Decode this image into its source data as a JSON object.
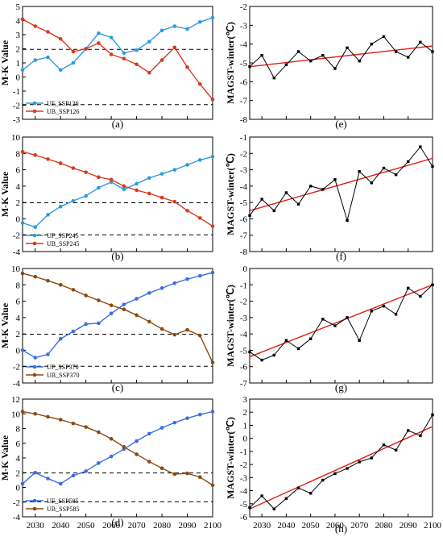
{
  "figure": {
    "panels": [
      {
        "label": "(a)",
        "ylabel": "M-K Value",
        "kind": "mk",
        "x": "left",
        "ylim": [
          -3,
          5
        ],
        "yticks": [
          -3,
          -2,
          -1,
          0,
          1,
          2,
          3,
          4,
          5
        ],
        "legend": [
          "UF_SSP126",
          "UB_SSP126"
        ],
        "uf_color": "#2e9be0",
        "ub_color": "#d83a1f"
      },
      {
        "label": "(b)",
        "ylabel": "M-K Value",
        "kind": "mk",
        "x": "left",
        "ylim": [
          -4,
          10
        ],
        "yticks": [
          -4,
          -2,
          0,
          2,
          4,
          6,
          8,
          10
        ],
        "legend": [
          "UF_SSP245",
          "UB_SSP245"
        ],
        "uf_color": "#2e9be0",
        "ub_color": "#d83a1f"
      },
      {
        "label": "(c)",
        "ylabel": "M-K Value",
        "kind": "mk",
        "x": "left",
        "ylim": [
          -4,
          10
        ],
        "yticks": [
          -4,
          -2,
          0,
          2,
          4,
          6,
          8,
          10
        ],
        "legend": [
          "UF_SSP370",
          "UB_SSP370"
        ],
        "uf_color": "#3a6fe0",
        "ub_color": "#8a4a12"
      },
      {
        "label": "(d)",
        "ylabel": "M-K Value",
        "kind": "mk",
        "x": "left",
        "ylim": [
          -4,
          12
        ],
        "yticks": [
          -4,
          -2,
          0,
          2,
          4,
          6,
          8,
          10,
          12
        ],
        "legend": [
          "UF_SSP585",
          "UB_SSP585"
        ],
        "uf_color": "#3a6fe0",
        "ub_color": "#8a4a12"
      },
      {
        "label": "(e)",
        "ylabel": "MAGST-winter(℃)",
        "kind": "ts",
        "x": "right",
        "ylim": [
          -8,
          -2
        ],
        "yticks": [
          -8,
          -7,
          -6,
          -5,
          -4,
          -3,
          -2
        ]
      },
      {
        "label": "(f)",
        "ylabel": "MAGST-winter(℃)",
        "kind": "ts",
        "x": "right",
        "ylim": [
          -8,
          -1
        ],
        "yticks": [
          -8,
          -7,
          -6,
          -5,
          -4,
          -3,
          -2,
          -1
        ]
      },
      {
        "label": "(g)",
        "ylabel": "MAGST-winter(℃)",
        "kind": "ts",
        "x": "right",
        "ylim": [
          -7,
          0
        ],
        "yticks": [
          -7,
          -6,
          -5,
          -4,
          -3,
          -2,
          -1,
          0
        ]
      },
      {
        "label": "(h)",
        "ylabel": "MAGST-winter(℃)",
        "kind": "ts",
        "x": "right",
        "ylim": [
          -6,
          3
        ],
        "yticks": [
          -6,
          -5,
          -4,
          -3,
          -2,
          -1,
          0,
          1,
          2,
          3
        ]
      }
    ],
    "xticks": [
      2030,
      2040,
      2050,
      2060,
      2070,
      2080,
      2090,
      2100
    ],
    "xlim": [
      2025,
      2100
    ]
  },
  "chart_data": [
    {
      "type": "line",
      "panel": "(a)",
      "x": [
        2025,
        2030,
        2035,
        2040,
        2045,
        2050,
        2055,
        2060,
        2065,
        2070,
        2075,
        2080,
        2085,
        2090,
        2095,
        2100
      ],
      "series": [
        {
          "name": "UF_SSP126",
          "values": [
            0.5,
            1.2,
            1.4,
            0.5,
            1.0,
            2.0,
            3.1,
            2.8,
            1.7,
            1.9,
            2.5,
            3.3,
            3.6,
            3.4,
            3.9,
            4.2
          ]
        },
        {
          "name": "UB_SSP126",
          "values": [
            4.1,
            3.6,
            3.2,
            2.7,
            1.8,
            2.0,
            2.4,
            1.6,
            1.3,
            0.9,
            0.3,
            1.2,
            2.1,
            0.7,
            -0.5,
            -1.6
          ]
        }
      ],
      "ref_lines": [
        1.96,
        -1.96
      ]
    },
    {
      "type": "line",
      "panel": "(b)",
      "x": [
        2025,
        2030,
        2035,
        2040,
        2045,
        2050,
        2055,
        2060,
        2065,
        2070,
        2075,
        2080,
        2085,
        2090,
        2095,
        2100
      ],
      "series": [
        {
          "name": "UF_SSP245",
          "values": [
            -0.5,
            -1.0,
            0.5,
            1.5,
            2.2,
            2.8,
            3.8,
            4.5,
            3.6,
            4.3,
            5.0,
            5.5,
            6.0,
            6.6,
            7.2,
            7.6
          ]
        },
        {
          "name": "UB_SSP245",
          "values": [
            8.2,
            7.8,
            7.3,
            6.8,
            6.2,
            5.7,
            5.1,
            4.8,
            4.0,
            3.5,
            3.1,
            2.6,
            2.1,
            1.0,
            0.1,
            -0.9
          ]
        }
      ],
      "ref_lines": [
        1.96,
        -1.96
      ]
    },
    {
      "type": "line",
      "panel": "(c)",
      "x": [
        2025,
        2030,
        2035,
        2040,
        2045,
        2050,
        2055,
        2060,
        2065,
        2070,
        2075,
        2080,
        2085,
        2090,
        2095,
        2100
      ],
      "series": [
        {
          "name": "UF_SSP370",
          "values": [
            0.0,
            -0.9,
            -0.5,
            1.4,
            2.3,
            3.2,
            3.3,
            4.5,
            5.6,
            6.3,
            7.0,
            7.6,
            8.2,
            8.7,
            9.1,
            9.5
          ]
        },
        {
          "name": "UB_SSP370",
          "values": [
            9.4,
            9.0,
            8.5,
            8.0,
            7.4,
            6.7,
            6.1,
            5.5,
            5.0,
            4.3,
            3.5,
            2.6,
            1.9,
            2.5,
            1.8,
            -1.5
          ]
        }
      ],
      "ref_lines": [
        1.96,
        -1.96
      ]
    },
    {
      "type": "line",
      "panel": "(d)",
      "x": [
        2025,
        2030,
        2035,
        2040,
        2045,
        2050,
        2055,
        2060,
        2065,
        2070,
        2075,
        2080,
        2085,
        2090,
        2095,
        2100
      ],
      "series": [
        {
          "name": "UF_SSP585",
          "values": [
            0.5,
            2.0,
            1.2,
            0.5,
            1.6,
            2.2,
            3.3,
            4.2,
            5.2,
            6.3,
            7.3,
            8.1,
            8.8,
            9.4,
            9.9,
            10.3
          ]
        },
        {
          "name": "UB_SSP585",
          "values": [
            10.3,
            10.0,
            9.6,
            9.2,
            8.7,
            8.2,
            7.5,
            6.6,
            5.5,
            4.5,
            3.5,
            2.6,
            1.8,
            1.9,
            1.4,
            0.3
          ]
        }
      ],
      "ref_lines": [
        1.96,
        -1.96
      ]
    },
    {
      "type": "line",
      "panel": "(e)",
      "x": [
        2025,
        2030,
        2035,
        2040,
        2045,
        2050,
        2055,
        2060,
        2065,
        2070,
        2075,
        2080,
        2085,
        2090,
        2095,
        2100
      ],
      "series": [
        {
          "name": "",
          "values": [
            -5.2,
            -4.6,
            -5.8,
            -5.1,
            -4.4,
            -4.9,
            -4.6,
            -5.3,
            -4.2,
            -4.9,
            -4.0,
            -3.6,
            -4.4,
            -4.7,
            -3.9,
            -4.4
          ]
        }
      ],
      "trend": [
        -5.2,
        -4.1
      ]
    },
    {
      "type": "line",
      "panel": "(f)",
      "x": [
        2025,
        2030,
        2035,
        2040,
        2045,
        2050,
        2055,
        2060,
        2065,
        2070,
        2075,
        2080,
        2085,
        2090,
        2095,
        2100
      ],
      "series": [
        {
          "name": "",
          "values": [
            -5.8,
            -4.8,
            -5.5,
            -4.4,
            -5.1,
            -4.0,
            -4.2,
            -3.6,
            -6.1,
            -3.1,
            -3.8,
            -2.9,
            -3.3,
            -2.5,
            -1.6,
            -2.8
          ]
        }
      ],
      "trend": [
        -5.5,
        -2.3
      ]
    },
    {
      "type": "line",
      "panel": "(g)",
      "x": [
        2025,
        2030,
        2035,
        2040,
        2045,
        2050,
        2055,
        2060,
        2065,
        2070,
        2075,
        2080,
        2085,
        2090,
        2095,
        2100
      ],
      "series": [
        {
          "name": "",
          "values": [
            -5.1,
            -5.6,
            -5.3,
            -4.4,
            -4.9,
            -4.3,
            -3.1,
            -3.5,
            -3.0,
            -4.4,
            -2.6,
            -2.3,
            -2.8,
            -1.2,
            -1.7,
            -1.0
          ]
        }
      ],
      "trend": [
        -5.4,
        -1.0
      ]
    },
    {
      "type": "line",
      "panel": "(h)",
      "x": [
        2025,
        2030,
        2035,
        2040,
        2045,
        2050,
        2055,
        2060,
        2065,
        2070,
        2075,
        2080,
        2085,
        2090,
        2095,
        2100
      ],
      "series": [
        {
          "name": "",
          "values": [
            -5.3,
            -4.4,
            -5.4,
            -4.6,
            -3.8,
            -4.2,
            -3.2,
            -2.7,
            -2.3,
            -1.8,
            -1.5,
            -0.5,
            -0.9,
            0.6,
            0.2,
            1.8
          ]
        }
      ],
      "trend": [
        -5.4,
        0.9
      ]
    }
  ]
}
